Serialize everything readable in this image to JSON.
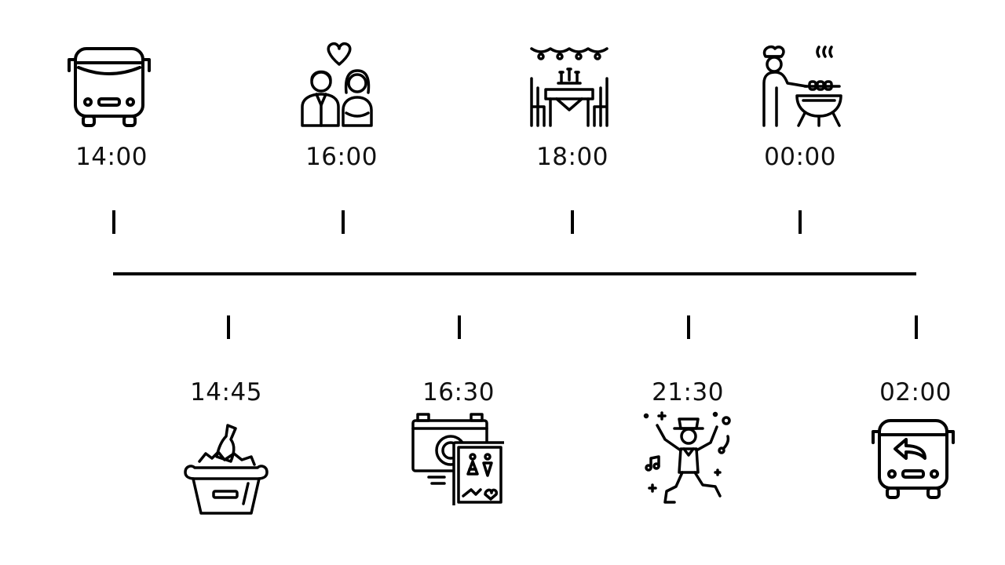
{
  "timeline": {
    "top_events": [
      {
        "time": "14:00",
        "icon": "bus-icon"
      },
      {
        "time": "16:00",
        "icon": "couple-heart-icon"
      },
      {
        "time": "18:00",
        "icon": "dinner-table-icon"
      },
      {
        "time": "00:00",
        "icon": "chef-grill-icon"
      }
    ],
    "bottom_events": [
      {
        "time": "14:45",
        "icon": "champagne-bucket-icon"
      },
      {
        "time": "16:30",
        "icon": "camera-photo-icon"
      },
      {
        "time": "21:30",
        "icon": "dancer-icon"
      },
      {
        "time": "02:00",
        "icon": "bus-return-icon"
      }
    ],
    "line_color": "#000000"
  }
}
